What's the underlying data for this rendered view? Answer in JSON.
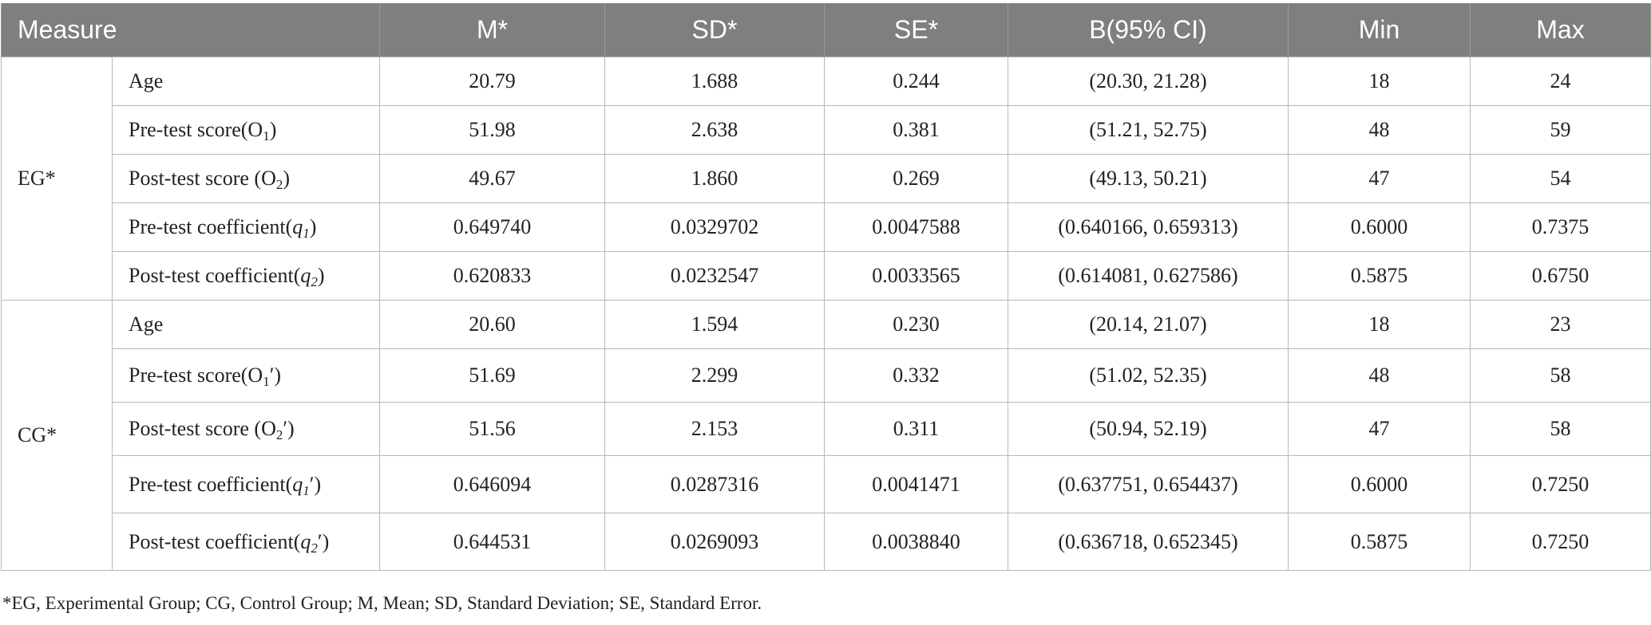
{
  "headers": {
    "measure": "Measure",
    "m": "M*",
    "sd": "SD*",
    "se": "SE*",
    "ci": "B(95% CI)",
    "min": "Min",
    "max": "Max"
  },
  "groups": [
    {
      "name": "EG*",
      "rows": [
        {
          "label_base": "Age",
          "label_sub": "",
          "label_tail": "",
          "m": "20.79",
          "sd": "1.688",
          "se": "0.244",
          "ci": "(20.30, 21.28)",
          "min": "18",
          "max": "24"
        },
        {
          "label_base": "Pre-test score(O",
          "label_sub": "1",
          "label_tail": ")",
          "m": "51.98",
          "sd": "2.638",
          "se": "0.381",
          "ci": "(51.21, 52.75)",
          "min": "48",
          "max": "59"
        },
        {
          "label_base": "Post-test score (O",
          "label_sub": "2",
          "label_tail": ")",
          "m": "49.67",
          "sd": "1.860",
          "se": "0.269",
          "ci": "(49.13, 50.21)",
          "min": "47",
          "max": "54"
        },
        {
          "label_base": "Pre-test coefficient(",
          "label_var": "q",
          "label_sub": "1",
          "label_tail": ")",
          "m": "0.649740",
          "sd": "0.0329702",
          "se": "0.0047588",
          "ci": "(0.640166, 0.659313)",
          "min": "0.6000",
          "max": "0.7375"
        },
        {
          "label_base": "Post-test coefficient(",
          "label_var": "q",
          "label_sub": "2",
          "label_tail": ")",
          "m": "0.620833",
          "sd": "0.0232547",
          "se": "0.0033565",
          "ci": "(0.614081, 0.627586)",
          "min": "0.5875",
          "max": "0.6750"
        }
      ]
    },
    {
      "name": "CG*",
      "rows": [
        {
          "label_base": "Age",
          "label_sub": "",
          "label_tail": "",
          "m": "20.60",
          "sd": "1.594",
          "se": "0.230",
          "ci": "(20.14, 21.07)",
          "min": "18",
          "max": "23"
        },
        {
          "label_base": "Pre-test score(O",
          "label_sub": "1",
          "label_tail": "′)",
          "m": "51.69",
          "sd": "2.299",
          "se": "0.332",
          "ci": "(51.02, 52.35)",
          "min": "48",
          "max": "58"
        },
        {
          "label_base": "Post-test score (O",
          "label_sub": "2",
          "label_tail": "′)",
          "m": "51.56",
          "sd": "2.153",
          "se": "0.311",
          "ci": "(50.94, 52.19)",
          "min": "47",
          "max": "58"
        },
        {
          "label_base": "Pre-test coefficient(",
          "label_var": "q",
          "label_sub": "1",
          "label_tail": "′)",
          "m": "0.646094",
          "sd": "0.0287316",
          "se": "0.0041471",
          "ci": "(0.637751, 0.654437)",
          "min": "0.6000",
          "max": "0.7250"
        },
        {
          "label_base": "Post-test coefficient(",
          "label_var": "q",
          "label_sub": "2",
          "label_tail": "′)",
          "m": "0.644531",
          "sd": "0.0269093",
          "se": "0.0038840",
          "ci": "(0.636718, 0.652345)",
          "min": "0.5875",
          "max": "0.7250"
        }
      ]
    }
  ],
  "footnote": "*EG, Experimental Group; CG, Control Group; M, Mean; SD, Standard Deviation; SE, Standard Error."
}
